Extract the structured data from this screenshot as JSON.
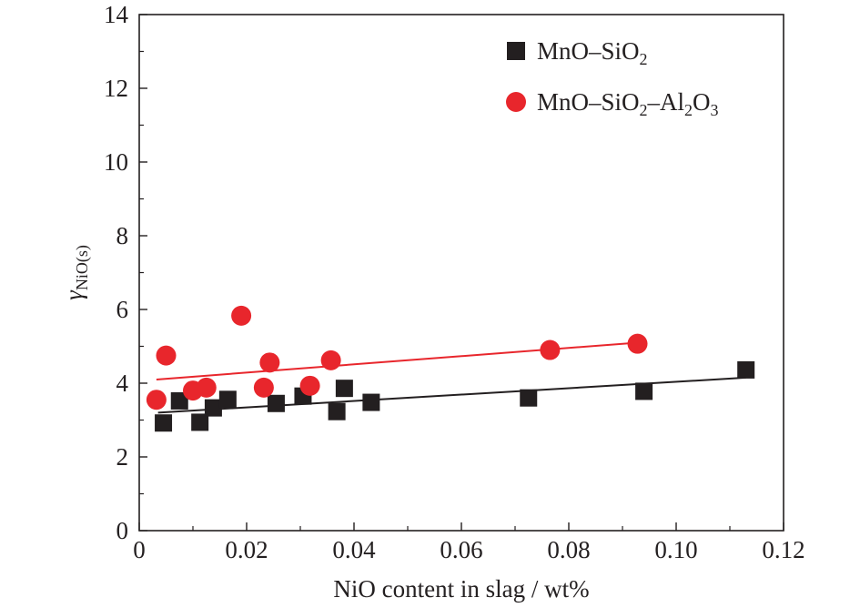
{
  "chart_data": {
    "type": "scatter",
    "title": "",
    "xlabel": "NiO content in slag / wt%",
    "ylabel": {
      "base": "γ",
      "sub": "NiO(s)"
    },
    "xlim": [
      0,
      0.12
    ],
    "ylim": [
      0,
      14
    ],
    "x_ticks": [
      0,
      0.02,
      0.04,
      0.06,
      0.08,
      0.1,
      0.12
    ],
    "x_tick_labels": [
      "0",
      "0.02",
      "0.04",
      "0.06",
      "0.08",
      "0.10",
      "0.12"
    ],
    "y_ticks": [
      0,
      2,
      4,
      6,
      8,
      10,
      12,
      14
    ],
    "y_tick_labels": [
      "0",
      "2",
      "4",
      "6",
      "8",
      "10",
      "12",
      "14"
    ],
    "grid": false,
    "legend_position": "top-right",
    "series": [
      {
        "name": "MnO–SiO2",
        "legend_parts": [
          {
            "t": "MnO–SiO",
            "sub": false
          },
          {
            "t": "2",
            "sub": true
          }
        ],
        "marker": "square",
        "color": "#231f20",
        "points": [
          [
            0.0045,
            2.92
          ],
          [
            0.0075,
            3.52
          ],
          [
            0.0113,
            2.94
          ],
          [
            0.0138,
            3.33
          ],
          [
            0.0165,
            3.56
          ],
          [
            0.0255,
            3.45
          ],
          [
            0.0305,
            3.65
          ],
          [
            0.0368,
            3.23
          ],
          [
            0.0382,
            3.86
          ],
          [
            0.0432,
            3.48
          ],
          [
            0.0725,
            3.6
          ],
          [
            0.094,
            3.78
          ],
          [
            0.113,
            4.36
          ]
        ],
        "fit": {
          "x": [
            0.0035,
            0.113
          ],
          "y": [
            3.2,
            4.15
          ],
          "color": "#231f20"
        }
      },
      {
        "name": "MnO–SiO2–Al2O3",
        "legend_parts": [
          {
            "t": "MnO–SiO",
            "sub": false
          },
          {
            "t": "2",
            "sub": true
          },
          {
            "t": "–Al",
            "sub": false
          },
          {
            "t": "2",
            "sub": true
          },
          {
            "t": "O",
            "sub": false
          },
          {
            "t": "3",
            "sub": true
          }
        ],
        "marker": "circle",
        "color": "#e8262c",
        "points": [
          [
            0.0032,
            3.55
          ],
          [
            0.005,
            4.75
          ],
          [
            0.01,
            3.8
          ],
          [
            0.0125,
            3.88
          ],
          [
            0.019,
            5.83
          ],
          [
            0.0232,
            3.88
          ],
          [
            0.0243,
            4.56
          ],
          [
            0.0318,
            3.93
          ],
          [
            0.0357,
            4.62
          ],
          [
            0.0765,
            4.9
          ],
          [
            0.0928,
            5.07
          ]
        ],
        "fit": {
          "x": [
            0.0032,
            0.0928
          ],
          "y": [
            4.1,
            5.1
          ],
          "color": "#e8262c"
        }
      }
    ]
  }
}
